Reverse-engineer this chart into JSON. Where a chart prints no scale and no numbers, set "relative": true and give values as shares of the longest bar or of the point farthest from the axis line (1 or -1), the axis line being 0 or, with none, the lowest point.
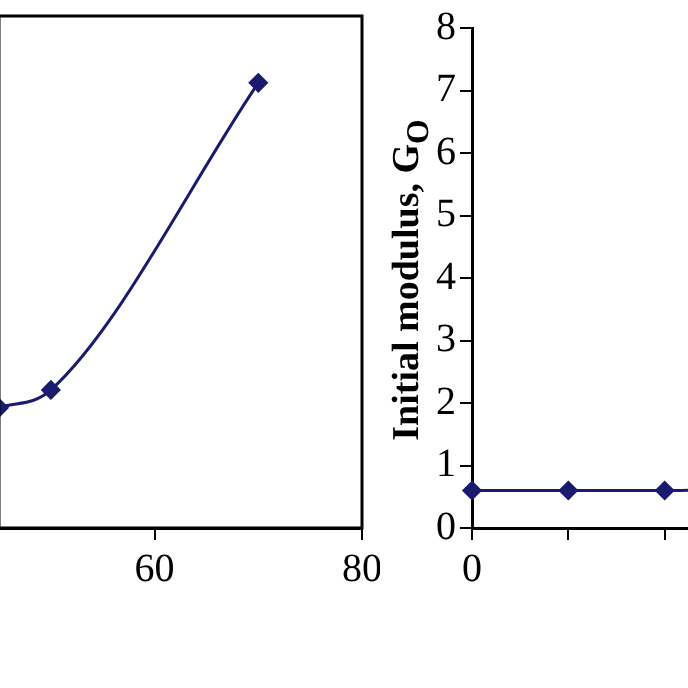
{
  "chart_data": [
    {
      "type": "line",
      "relative": true,
      "x": [
        45,
        50,
        70
      ],
      "values": [
        0.27,
        0.31,
        1
      ],
      "color": "#1a1a6e",
      "marker": "diamond",
      "line_style": "solid",
      "xlim": [
        45,
        80
      ],
      "xticks": [
        60,
        80
      ],
      "tick_labels": "x"
    },
    {
      "type": "line",
      "ylabel": "Initial modulus, G$_{O}$",
      "categories": [
        "0",
        null,
        null,
        null
      ],
      "values": [
        0.6,
        0.6,
        0.6,
        0.65
      ],
      "color": "#1a1a6e",
      "marker": "diamond",
      "line_style": "solid",
      "ylim": [
        0,
        8
      ],
      "yticks": [
        0,
        1,
        2,
        3,
        4,
        5,
        6,
        7,
        8
      ]
    }
  ]
}
